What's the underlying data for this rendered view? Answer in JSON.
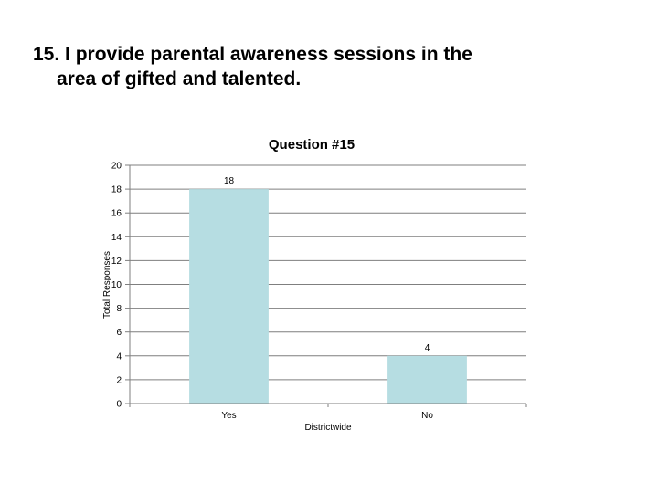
{
  "slide": {
    "title_line1": "15.  I provide parental awareness sessions in the",
    "title_line2": "area of gifted and talented."
  },
  "chart_data": {
    "type": "bar",
    "title": "Question #15",
    "xlabel": "Districtwide",
    "ylabel": "Total Responses",
    "categories": [
      "Yes",
      "No"
    ],
    "values": [
      18,
      4
    ],
    "data_labels": [
      "18",
      "4"
    ],
    "ylim": [
      0,
      20
    ],
    "yticks": [
      0,
      2,
      4,
      6,
      8,
      10,
      12,
      14,
      16,
      18,
      20
    ],
    "grid": true,
    "legend": "none",
    "colors": {
      "bar": "#b6dde2",
      "grid": "#7f7f7f",
      "axis": "#7f7f7f"
    }
  }
}
